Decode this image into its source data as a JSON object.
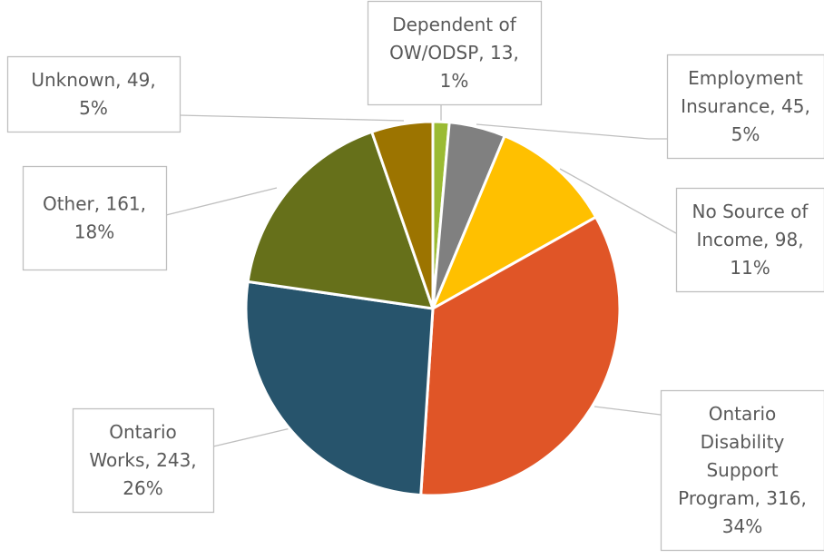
{
  "chart_data": {
    "type": "pie",
    "title": "",
    "slices": [
      {
        "label_lines": [
          "Dependent of",
          "OW/ODSP, 13,",
          "1%"
        ],
        "category": "Dependent of OW/ODSP",
        "value": 13,
        "percent": "1%",
        "color": "#9BBB33"
      },
      {
        "label_lines": [
          "Employment",
          "Insurance, 45,",
          "5%"
        ],
        "category": "Employment Insurance",
        "value": 45,
        "percent": "5%",
        "color": "#808080"
      },
      {
        "label_lines": [
          "No Source of",
          "Income, 98,",
          "11%"
        ],
        "category": "No Source of Income",
        "value": 98,
        "percent": "11%",
        "color": "#FFC000"
      },
      {
        "label_lines": [
          "Ontario",
          "Disability",
          "Support",
          "Program, 316,",
          "34%"
        ],
        "category": "Ontario Disability Support Program",
        "value": 316,
        "percent": "34%",
        "color": "#E05527"
      },
      {
        "label_lines": [
          "Ontario",
          "Works, 243,",
          "26%"
        ],
        "category": "Ontario Works",
        "value": 243,
        "percent": "26%",
        "color": "#27546C"
      },
      {
        "label_lines": [
          "Other, 161,",
          "18%"
        ],
        "category": "Other",
        "value": 161,
        "percent": "18%",
        "color": "#66701A"
      },
      {
        "label_lines": [
          "Unknown, 49,",
          "5%"
        ],
        "category": "Unknown",
        "value": 49,
        "percent": "5%",
        "color": "#9C7400"
      }
    ]
  }
}
